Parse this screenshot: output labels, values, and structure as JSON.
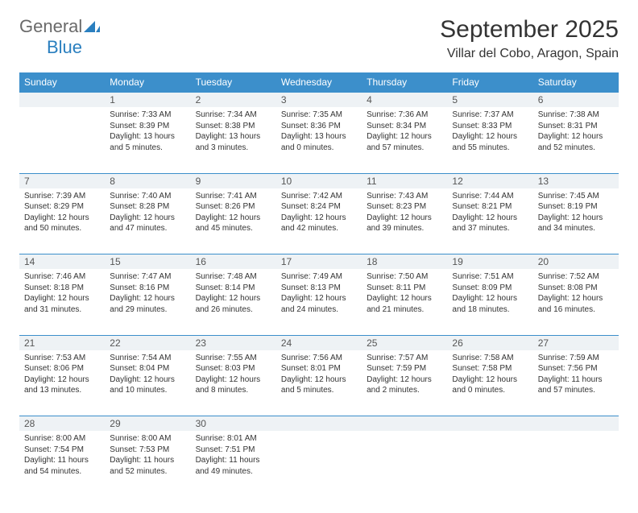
{
  "logo": {
    "part1": "General",
    "part2": "Blue"
  },
  "title": "September 2025",
  "location": "Villar del Cobo, Aragon, Spain",
  "colors": {
    "header_bg": "#3c8fcb",
    "header_text": "#ffffff",
    "daynum_bg": "#eef2f5",
    "rule": "#3c8fcb",
    "logo_blue": "#2a7fbf",
    "logo_gray": "#6a6a6a"
  },
  "weekdays": [
    "Sunday",
    "Monday",
    "Tuesday",
    "Wednesday",
    "Thursday",
    "Friday",
    "Saturday"
  ],
  "weeks": [
    [
      {
        "n": "",
        "sr": "",
        "ss": "",
        "dl": ""
      },
      {
        "n": "1",
        "sr": "Sunrise: 7:33 AM",
        "ss": "Sunset: 8:39 PM",
        "dl": "Daylight: 13 hours and 5 minutes."
      },
      {
        "n": "2",
        "sr": "Sunrise: 7:34 AM",
        "ss": "Sunset: 8:38 PM",
        "dl": "Daylight: 13 hours and 3 minutes."
      },
      {
        "n": "3",
        "sr": "Sunrise: 7:35 AM",
        "ss": "Sunset: 8:36 PM",
        "dl": "Daylight: 13 hours and 0 minutes."
      },
      {
        "n": "4",
        "sr": "Sunrise: 7:36 AM",
        "ss": "Sunset: 8:34 PM",
        "dl": "Daylight: 12 hours and 57 minutes."
      },
      {
        "n": "5",
        "sr": "Sunrise: 7:37 AM",
        "ss": "Sunset: 8:33 PM",
        "dl": "Daylight: 12 hours and 55 minutes."
      },
      {
        "n": "6",
        "sr": "Sunrise: 7:38 AM",
        "ss": "Sunset: 8:31 PM",
        "dl": "Daylight: 12 hours and 52 minutes."
      }
    ],
    [
      {
        "n": "7",
        "sr": "Sunrise: 7:39 AM",
        "ss": "Sunset: 8:29 PM",
        "dl": "Daylight: 12 hours and 50 minutes."
      },
      {
        "n": "8",
        "sr": "Sunrise: 7:40 AM",
        "ss": "Sunset: 8:28 PM",
        "dl": "Daylight: 12 hours and 47 minutes."
      },
      {
        "n": "9",
        "sr": "Sunrise: 7:41 AM",
        "ss": "Sunset: 8:26 PM",
        "dl": "Daylight: 12 hours and 45 minutes."
      },
      {
        "n": "10",
        "sr": "Sunrise: 7:42 AM",
        "ss": "Sunset: 8:24 PM",
        "dl": "Daylight: 12 hours and 42 minutes."
      },
      {
        "n": "11",
        "sr": "Sunrise: 7:43 AM",
        "ss": "Sunset: 8:23 PM",
        "dl": "Daylight: 12 hours and 39 minutes."
      },
      {
        "n": "12",
        "sr": "Sunrise: 7:44 AM",
        "ss": "Sunset: 8:21 PM",
        "dl": "Daylight: 12 hours and 37 minutes."
      },
      {
        "n": "13",
        "sr": "Sunrise: 7:45 AM",
        "ss": "Sunset: 8:19 PM",
        "dl": "Daylight: 12 hours and 34 minutes."
      }
    ],
    [
      {
        "n": "14",
        "sr": "Sunrise: 7:46 AM",
        "ss": "Sunset: 8:18 PM",
        "dl": "Daylight: 12 hours and 31 minutes."
      },
      {
        "n": "15",
        "sr": "Sunrise: 7:47 AM",
        "ss": "Sunset: 8:16 PM",
        "dl": "Daylight: 12 hours and 29 minutes."
      },
      {
        "n": "16",
        "sr": "Sunrise: 7:48 AM",
        "ss": "Sunset: 8:14 PM",
        "dl": "Daylight: 12 hours and 26 minutes."
      },
      {
        "n": "17",
        "sr": "Sunrise: 7:49 AM",
        "ss": "Sunset: 8:13 PM",
        "dl": "Daylight: 12 hours and 24 minutes."
      },
      {
        "n": "18",
        "sr": "Sunrise: 7:50 AM",
        "ss": "Sunset: 8:11 PM",
        "dl": "Daylight: 12 hours and 21 minutes."
      },
      {
        "n": "19",
        "sr": "Sunrise: 7:51 AM",
        "ss": "Sunset: 8:09 PM",
        "dl": "Daylight: 12 hours and 18 minutes."
      },
      {
        "n": "20",
        "sr": "Sunrise: 7:52 AM",
        "ss": "Sunset: 8:08 PM",
        "dl": "Daylight: 12 hours and 16 minutes."
      }
    ],
    [
      {
        "n": "21",
        "sr": "Sunrise: 7:53 AM",
        "ss": "Sunset: 8:06 PM",
        "dl": "Daylight: 12 hours and 13 minutes."
      },
      {
        "n": "22",
        "sr": "Sunrise: 7:54 AM",
        "ss": "Sunset: 8:04 PM",
        "dl": "Daylight: 12 hours and 10 minutes."
      },
      {
        "n": "23",
        "sr": "Sunrise: 7:55 AM",
        "ss": "Sunset: 8:03 PM",
        "dl": "Daylight: 12 hours and 8 minutes."
      },
      {
        "n": "24",
        "sr": "Sunrise: 7:56 AM",
        "ss": "Sunset: 8:01 PM",
        "dl": "Daylight: 12 hours and 5 minutes."
      },
      {
        "n": "25",
        "sr": "Sunrise: 7:57 AM",
        "ss": "Sunset: 7:59 PM",
        "dl": "Daylight: 12 hours and 2 minutes."
      },
      {
        "n": "26",
        "sr": "Sunrise: 7:58 AM",
        "ss": "Sunset: 7:58 PM",
        "dl": "Daylight: 12 hours and 0 minutes."
      },
      {
        "n": "27",
        "sr": "Sunrise: 7:59 AM",
        "ss": "Sunset: 7:56 PM",
        "dl": "Daylight: 11 hours and 57 minutes."
      }
    ],
    [
      {
        "n": "28",
        "sr": "Sunrise: 8:00 AM",
        "ss": "Sunset: 7:54 PM",
        "dl": "Daylight: 11 hours and 54 minutes."
      },
      {
        "n": "29",
        "sr": "Sunrise: 8:00 AM",
        "ss": "Sunset: 7:53 PM",
        "dl": "Daylight: 11 hours and 52 minutes."
      },
      {
        "n": "30",
        "sr": "Sunrise: 8:01 AM",
        "ss": "Sunset: 7:51 PM",
        "dl": "Daylight: 11 hours and 49 minutes."
      },
      {
        "n": "",
        "sr": "",
        "ss": "",
        "dl": ""
      },
      {
        "n": "",
        "sr": "",
        "ss": "",
        "dl": ""
      },
      {
        "n": "",
        "sr": "",
        "ss": "",
        "dl": ""
      },
      {
        "n": "",
        "sr": "",
        "ss": "",
        "dl": ""
      }
    ]
  ]
}
